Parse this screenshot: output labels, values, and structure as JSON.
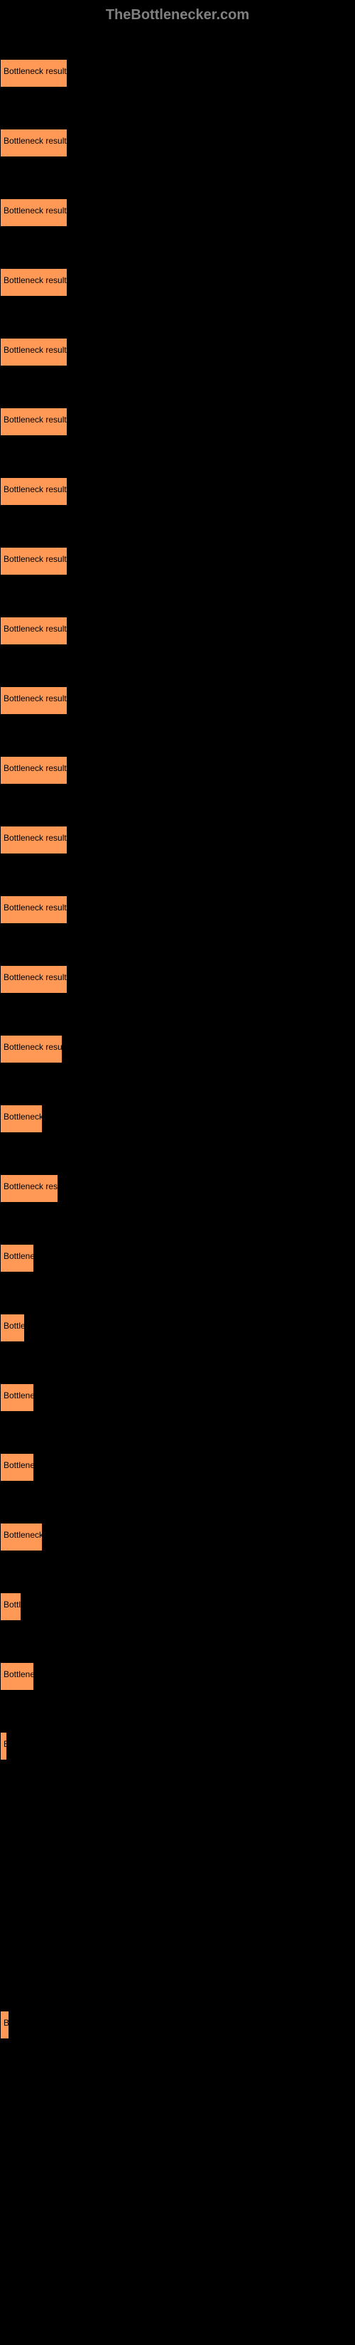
{
  "header": {
    "title": "TheBottlenecker.com"
  },
  "chart": {
    "type": "bar",
    "background_color": "#000000",
    "bar_color": "#ff9955",
    "bar_border_color": "#000000",
    "label_color": "#000000",
    "label_fontsize": 12,
    "max_width": 95,
    "bars": [
      {
        "label": "Bottleneck result",
        "width": 95
      },
      {
        "label": "Bottleneck result",
        "width": 95
      },
      {
        "label": "Bottleneck result",
        "width": 95
      },
      {
        "label": "Bottleneck result",
        "width": 95
      },
      {
        "label": "Bottleneck result",
        "width": 95
      },
      {
        "label": "Bottleneck result",
        "width": 95
      },
      {
        "label": "Bottleneck result",
        "width": 95
      },
      {
        "label": "Bottleneck result",
        "width": 95
      },
      {
        "label": "Bottleneck result",
        "width": 95
      },
      {
        "label": "Bottleneck result",
        "width": 95
      },
      {
        "label": "Bottleneck result",
        "width": 95
      },
      {
        "label": "Bottleneck result",
        "width": 95
      },
      {
        "label": "Bottleneck result",
        "width": 95
      },
      {
        "label": "Bottleneck result",
        "width": 95
      },
      {
        "label": "Bottleneck resu",
        "width": 88
      },
      {
        "label": "Bottleneck",
        "width": 60
      },
      {
        "label": "Bottleneck res",
        "width": 82
      },
      {
        "label": "Bottlene",
        "width": 48
      },
      {
        "label": "Bottle",
        "width": 35
      },
      {
        "label": "Bottlene",
        "width": 48
      },
      {
        "label": "Bottlene",
        "width": 48
      },
      {
        "label": "Bottleneck",
        "width": 60
      },
      {
        "label": "Bottl",
        "width": 30
      },
      {
        "label": "Bottlene",
        "width": 48
      },
      {
        "label": "B",
        "width": 10
      },
      {
        "label": "",
        "width": 0
      },
      {
        "label": "",
        "width": 0
      },
      {
        "label": "",
        "width": 0
      },
      {
        "label": "B",
        "width": 13
      },
      {
        "label": "",
        "width": 0
      },
      {
        "label": "",
        "width": 0
      },
      {
        "label": "",
        "width": 0
      },
      {
        "label": "",
        "width": 0
      }
    ]
  }
}
